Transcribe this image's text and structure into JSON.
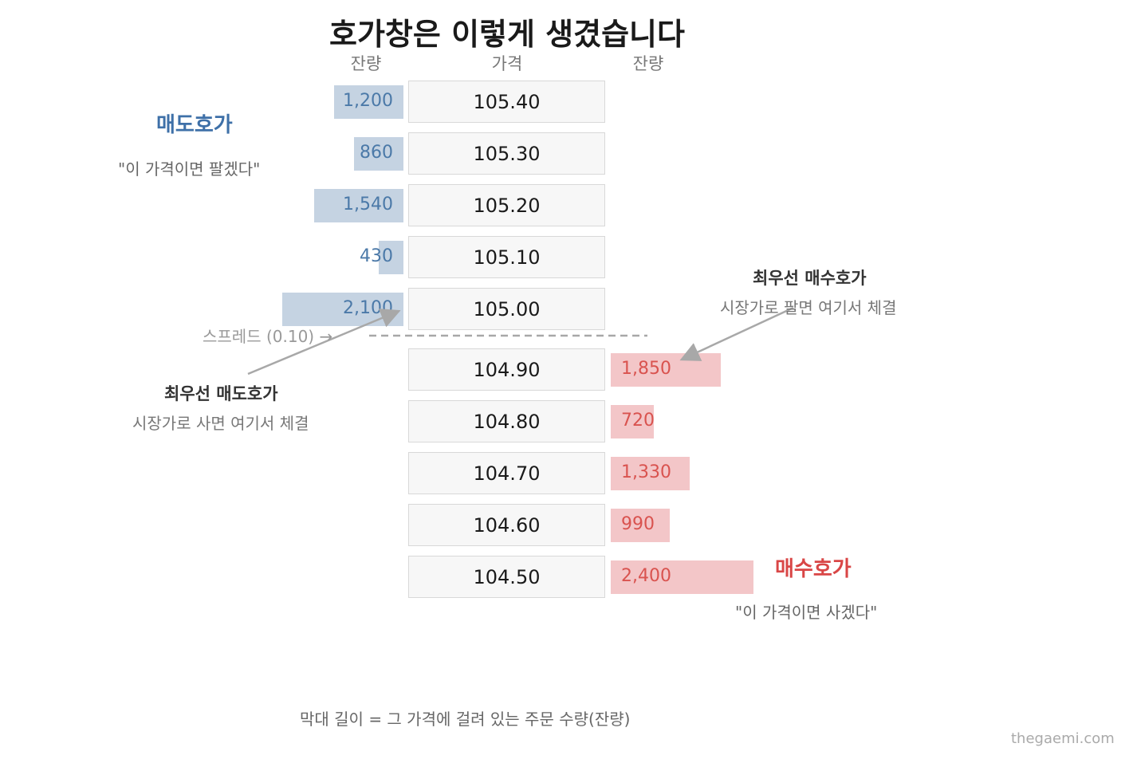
{
  "title": "호가창은 이렇게 생겼습니다",
  "headers": {
    "ask_qty": "잔량",
    "price": "가격",
    "bid_qty": "잔량"
  },
  "ask_side": {
    "title": "매도호가",
    "quote": "\"이 가격이면 팔겠다\"",
    "color": "#c5d3e2",
    "text_color": "#4b79a8"
  },
  "bid_side": {
    "title": "매수호가",
    "quote": "\"이 가격이면 사겠다\"",
    "color": "#f3c6c8",
    "text_color": "#d9534f"
  },
  "asks": [
    {
      "price": "105.40",
      "qty": "1,200",
      "value": 1200
    },
    {
      "price": "105.30",
      "qty": "860",
      "value": 860
    },
    {
      "price": "105.20",
      "qty": "1,540",
      "value": 1540
    },
    {
      "price": "105.10",
      "qty": "430",
      "value": 430
    },
    {
      "price": "105.00",
      "qty": "2,100",
      "value": 2100
    }
  ],
  "bids": [
    {
      "price": "104.90",
      "qty": "1,850",
      "value": 1850
    },
    {
      "price": "104.80",
      "qty": "720",
      "value": 720
    },
    {
      "price": "104.70",
      "qty": "1,330",
      "value": 1330
    },
    {
      "price": "104.60",
      "qty": "990",
      "value": 990
    },
    {
      "price": "104.50",
      "qty": "2,400",
      "value": 2400
    }
  ],
  "spread_label": "스프레드 (0.10) →",
  "best_ask": {
    "title": "최우선 매도호가",
    "sub": "시장가로 사면 여기서 체결"
  },
  "best_bid": {
    "title": "최우선 매수호가",
    "sub": "시장가로 팔면 여기서 체결"
  },
  "caption": "막대 길이 = 그 가격에 걸려 있는 주문 수량(잔량)",
  "brand": "thegaemi.com"
}
